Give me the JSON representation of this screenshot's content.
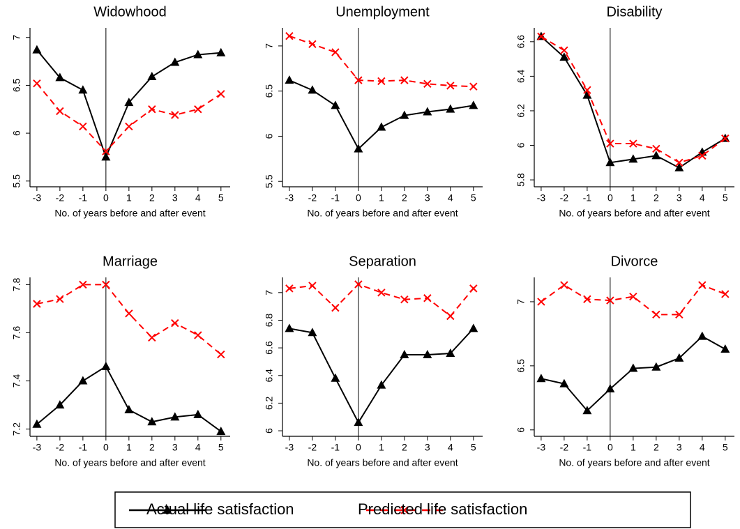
{
  "chart_data": [
    {
      "type": "line",
      "title": "Widowhood",
      "xlabel": "No. of years before and after event",
      "x": [
        -3,
        -2,
        -1,
        0,
        1,
        2,
        3,
        4,
        5
      ],
      "xlim": [
        -3.3,
        5.4
      ],
      "xticks": [
        -3,
        -2,
        -1,
        0,
        1,
        2,
        3,
        4,
        5
      ],
      "ylim": [
        5.44,
        7.1
      ],
      "yticks": [
        5.5,
        6,
        6.5,
        7
      ],
      "vline": 0,
      "legend": "bottom",
      "series": [
        {
          "name": "Actual life satisfaction",
          "color": "#000000",
          "marker": "triangle",
          "dashed": false,
          "values": [
            6.87,
            6.58,
            6.45,
            5.75,
            6.32,
            6.59,
            6.74,
            6.82,
            6.84
          ]
        },
        {
          "name": "Predicted life satisfaction",
          "color": "#ff0000",
          "marker": "x",
          "dashed": true,
          "values": [
            6.52,
            6.23,
            6.07,
            5.81,
            6.07,
            6.25,
            6.19,
            6.25,
            6.41
          ]
        }
      ]
    },
    {
      "type": "line",
      "title": "Unemployment",
      "xlabel": "No. of years before and after event",
      "x": [
        -3,
        -2,
        -1,
        0,
        1,
        2,
        3,
        4,
        5
      ],
      "xlim": [
        -3.3,
        5.4
      ],
      "xticks": [
        -3,
        -2,
        -1,
        0,
        1,
        2,
        3,
        4,
        5
      ],
      "ylim": [
        5.44,
        7.2
      ],
      "yticks": [
        5.5,
        6,
        6.5,
        7
      ],
      "vline": 0,
      "series": [
        {
          "color": "#000000",
          "marker": "triangle",
          "dashed": false,
          "values": [
            6.62,
            6.51,
            6.34,
            5.86,
            6.1,
            6.23,
            6.27,
            6.3,
            6.34
          ]
        },
        {
          "color": "#ff0000",
          "marker": "x",
          "dashed": true,
          "values": [
            7.11,
            7.02,
            6.93,
            6.62,
            6.61,
            6.62,
            6.58,
            6.56,
            6.55
          ]
        }
      ]
    },
    {
      "type": "line",
      "title": "Disability",
      "xlabel": "No. of years before and after event",
      "x": [
        -3,
        -2,
        -1,
        0,
        1,
        2,
        3,
        4,
        5
      ],
      "xlim": [
        -3.3,
        5.4
      ],
      "xticks": [
        -3,
        -2,
        -1,
        0,
        1,
        2,
        3,
        4,
        5
      ],
      "ylim": [
        5.76,
        6.68
      ],
      "yticks": [
        5.8,
        6,
        6.2,
        6.4,
        6.6
      ],
      "vline": 0,
      "series": [
        {
          "color": "#000000",
          "marker": "triangle",
          "dashed": false,
          "values": [
            6.63,
            6.51,
            6.29,
            5.9,
            5.92,
            5.94,
            5.87,
            5.96,
            6.04
          ]
        },
        {
          "color": "#ff0000",
          "marker": "x",
          "dashed": true,
          "values": [
            6.63,
            6.55,
            6.32,
            6.01,
            6.01,
            5.98,
            5.9,
            5.94,
            6.04
          ]
        }
      ]
    },
    {
      "type": "line",
      "title": "Marriage",
      "xlabel": "No. of years before and after event",
      "x": [
        -3,
        -2,
        -1,
        0,
        1,
        2,
        3,
        4,
        5
      ],
      "xlim": [
        -3.3,
        5.4
      ],
      "xticks": [
        -3,
        -2,
        -1,
        0,
        1,
        2,
        3,
        4,
        5
      ],
      "ylim": [
        7.17,
        7.83
      ],
      "yticks": [
        7.2,
        7.4,
        7.6,
        7.8
      ],
      "vline": 0,
      "series": [
        {
          "color": "#000000",
          "marker": "triangle",
          "dashed": false,
          "values": [
            7.22,
            7.3,
            7.4,
            7.46,
            7.28,
            7.23,
            7.25,
            7.26,
            7.19
          ]
        },
        {
          "color": "#ff0000",
          "marker": "x",
          "dashed": true,
          "values": [
            7.72,
            7.74,
            7.8,
            7.8,
            7.68,
            7.58,
            7.64,
            7.59,
            7.51
          ]
        }
      ]
    },
    {
      "type": "line",
      "title": "Separation",
      "xlabel": "No. of years before and after event",
      "x": [
        -3,
        -2,
        -1,
        0,
        1,
        2,
        3,
        4,
        5
      ],
      "xlim": [
        -3.3,
        5.4
      ],
      "xticks": [
        -3,
        -2,
        -1,
        0,
        1,
        2,
        3,
        4,
        5
      ],
      "ylim": [
        5.96,
        7.11
      ],
      "yticks": [
        6,
        6.2,
        6.4,
        6.6,
        6.8,
        7
      ],
      "vline": 0,
      "series": [
        {
          "color": "#000000",
          "marker": "triangle",
          "dashed": false,
          "values": [
            6.74,
            6.71,
            6.38,
            6.06,
            6.33,
            6.55,
            6.55,
            6.56,
            6.74
          ]
        },
        {
          "color": "#ff0000",
          "marker": "x",
          "dashed": true,
          "values": [
            7.03,
            7.05,
            6.89,
            7.06,
            7.0,
            6.95,
            6.96,
            6.83,
            7.03
          ]
        }
      ]
    },
    {
      "type": "line",
      "title": "Divorce",
      "xlabel": "No. of years before and after event",
      "x": [
        -3,
        -2,
        -1,
        0,
        1,
        2,
        3,
        4,
        5
      ],
      "xlim": [
        -3.3,
        5.4
      ],
      "xticks": [
        -3,
        -2,
        -1,
        0,
        1,
        2,
        3,
        4,
        5
      ],
      "ylim": [
        5.95,
        7.19
      ],
      "yticks": [
        6,
        6.5,
        7
      ],
      "vline": 0,
      "series": [
        {
          "color": "#000000",
          "marker": "triangle",
          "dashed": false,
          "values": [
            6.4,
            6.36,
            6.15,
            6.32,
            6.48,
            6.49,
            6.56,
            6.73,
            6.63
          ]
        },
        {
          "color": "#ff0000",
          "marker": "x",
          "dashed": true,
          "values": [
            7.0,
            7.13,
            7.02,
            7.01,
            7.04,
            6.9,
            6.9,
            7.13,
            7.06
          ]
        }
      ]
    }
  ]
}
